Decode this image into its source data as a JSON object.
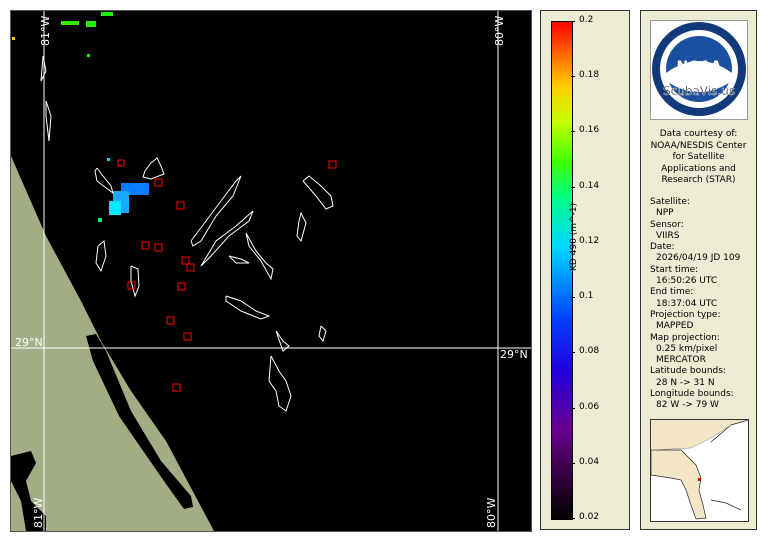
{
  "map": {
    "grid_labels": {
      "lon_left": "81°W",
      "lon_right": "80°W",
      "lat": "29°N"
    },
    "colors": {
      "land": "#a3ad85",
      "water": "#000000",
      "outline": "#ffffff",
      "marker": "#ff0000"
    }
  },
  "colorbar": {
    "title": "KD 490 (m^-1)",
    "ticks": [
      "0.2",
      "0.18",
      "0.16",
      "0.14",
      "0.12",
      "0.1",
      "0.08",
      "0.06",
      "0.04",
      "0.02"
    ],
    "range": [
      0.02,
      0.2
    ]
  },
  "logo": {
    "text": "NOAA",
    "watermark": "ScubaVis.us",
    "ring": "NATIONAL OCEANIC AND ATMOSPHERIC ADMINISTRATION · U.S. DEPARTMENT OF COMMERCE"
  },
  "info": {
    "courtesy": [
      "Data courtesy of:",
      "NOAA/NESDIS Center",
      "for Satellite",
      "Applications and",
      "Research (STAR)"
    ],
    "fields": [
      {
        "label": "Satellite:",
        "values": [
          "NPP"
        ]
      },
      {
        "label": "Sensor:",
        "values": [
          "VIIRS"
        ]
      },
      {
        "label": "Date:",
        "values": [
          "2026/04/19 JD 109"
        ]
      },
      {
        "label": "Start time:",
        "values": [
          "16:50:26 UTC"
        ]
      },
      {
        "label": "End time:",
        "values": [
          "18:37:04 UTC"
        ]
      },
      {
        "label": "Projection type:",
        "values": [
          "MAPPED"
        ]
      },
      {
        "label": "Map projection:",
        "values": [
          "0.25 km/pixel",
          "MERCATOR"
        ]
      },
      {
        "label": "Latitude bounds:",
        "values": [
          "28 N -> 31 N"
        ]
      },
      {
        "label": "Longitude bounds:",
        "values": [
          "82 W -> 79 W"
        ]
      }
    ]
  }
}
